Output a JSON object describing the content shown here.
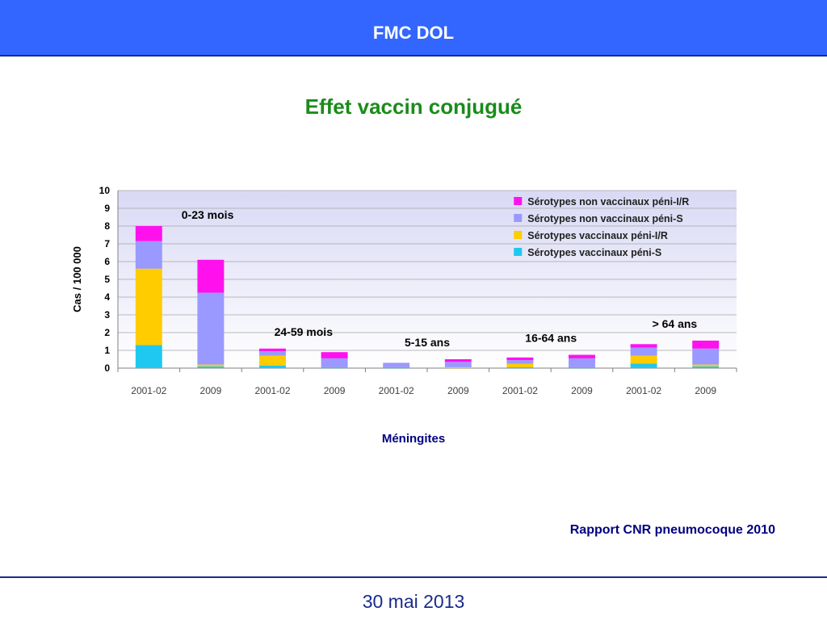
{
  "header": {
    "title": "FMC DOL"
  },
  "slide": {
    "title": "Effet vaccin conjugué",
    "caption": "Méningites",
    "source": "Rapport CNR pneumocoque 2010",
    "date": "30 mai 2013"
  },
  "chart_data": {
    "type": "bar",
    "stacked": true,
    "ylabel": "Cas / 100 000",
    "ylim": [
      0,
      10
    ],
    "yticks": [
      "0",
      "1",
      "2",
      "3",
      "4",
      "5",
      "6",
      "7",
      "8",
      "9",
      "10"
    ],
    "grid": true,
    "legend_position": "top-right",
    "categories": [
      "2001-02",
      "2009",
      "2001-02",
      "2009",
      "2001-02",
      "2009",
      "2001-02",
      "2009",
      "2001-02",
      "2009"
    ],
    "groups": [
      {
        "label": "0-23 mois",
        "categories": [
          0,
          1
        ]
      },
      {
        "label": "24-59 mois",
        "categories": [
          2,
          3
        ]
      },
      {
        "label": "5-15 ans",
        "categories": [
          4,
          5
        ]
      },
      {
        "label": "16-64 ans",
        "categories": [
          6,
          7
        ]
      },
      {
        "label": "> 64 ans",
        "categories": [
          8,
          9
        ]
      }
    ],
    "series": [
      {
        "name": "Sérotypes vaccinaux péni-S",
        "color": "#1fc8f0",
        "values": [
          1.3,
          0.1,
          0.15,
          0.05,
          0.05,
          0.0,
          0.05,
          0.05,
          0.25,
          0.1
        ]
      },
      {
        "name": "Sérotypes vaccinaux péni-I/R",
        "color": "#ffcc00",
        "values": [
          4.3,
          0.1,
          0.55,
          0.0,
          0.0,
          0.05,
          0.2,
          0.0,
          0.45,
          0.1
        ]
      },
      {
        "name": "Sérotypes non vaccinaux péni-S",
        "color": "#9999ff",
        "values": [
          1.55,
          4.05,
          0.25,
          0.5,
          0.25,
          0.3,
          0.2,
          0.5,
          0.45,
          0.9
        ]
      },
      {
        "name": "Sérotypes non vaccinaux péni-I/R",
        "color": "#ff11ee",
        "values": [
          0.85,
          1.85,
          0.15,
          0.35,
          0.0,
          0.15,
          0.15,
          0.2,
          0.2,
          0.45
        ]
      }
    ]
  }
}
